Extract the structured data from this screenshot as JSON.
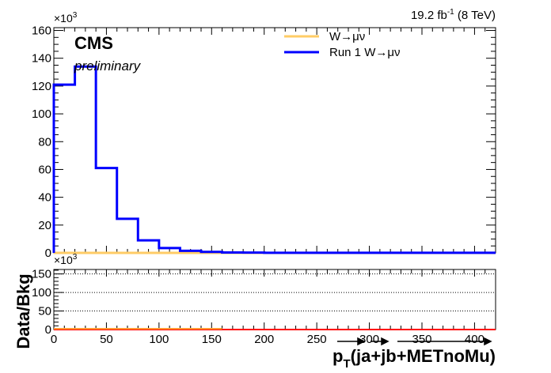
{
  "chart_data": [
    {
      "type": "line",
      "top_right_label": "19.2 fb",
      "top_right_sup": "-1",
      "top_right_suffix": " (8 TeV)",
      "cms_label": "CMS",
      "prelim_label": "preliminary",
      "y_multiplier_base": "×10",
      "y_multiplier_exp": "3",
      "xlim": [
        0,
        420
      ],
      "ylim": [
        0,
        162
      ],
      "yticks": [
        0,
        20,
        40,
        60,
        80,
        100,
        120,
        140,
        160
      ],
      "grid": false,
      "legend_position": "top-right",
      "bin_edges": [
        0,
        20,
        40,
        60,
        80,
        100,
        120,
        140,
        160,
        180,
        200,
        220,
        240,
        260,
        280,
        300,
        320,
        340,
        360,
        380,
        400,
        420
      ],
      "series": [
        {
          "name": "W→μν",
          "color": "#ffcc66",
          "values": [
            0,
            0,
            0,
            0,
            0,
            0,
            0,
            0,
            0,
            0,
            0,
            0,
            0,
            0,
            0,
            0,
            0,
            0,
            0,
            0,
            0
          ]
        },
        {
          "name": "Run 1 W→μν",
          "color": "#0000ff",
          "values": [
            121,
            134,
            61,
            24.5,
            9,
            3.5,
            1.5,
            0.7,
            0.3,
            0.2,
            0.1,
            0.1,
            0.1,
            0.1,
            0.1,
            0.1,
            0.1,
            0.1,
            0.1,
            0.1,
            0.1
          ]
        }
      ]
    },
    {
      "type": "line",
      "ylabel": "Data/Bkg",
      "xlabel_p": "p",
      "xlabel_sub": "T",
      "xlabel_rest": "(ja+jb+METnoMu)",
      "y_multiplier_base": "×10",
      "y_multiplier_exp": "3",
      "xlim": [
        0,
        420
      ],
      "ylim": [
        0,
        162
      ],
      "yticks": [
        0,
        50,
        100,
        150
      ],
      "xticks": [
        0,
        50,
        100,
        150,
        200,
        250,
        300,
        350,
        400
      ],
      "grid": true,
      "series": [
        {
          "name": "",
          "color": "#ff0000",
          "values": [
            0,
            0,
            0,
            0,
            0,
            0,
            0,
            0,
            0,
            0,
            0,
            0,
            0,
            0,
            0,
            0,
            0,
            0,
            0,
            0,
            0
          ]
        }
      ]
    }
  ]
}
